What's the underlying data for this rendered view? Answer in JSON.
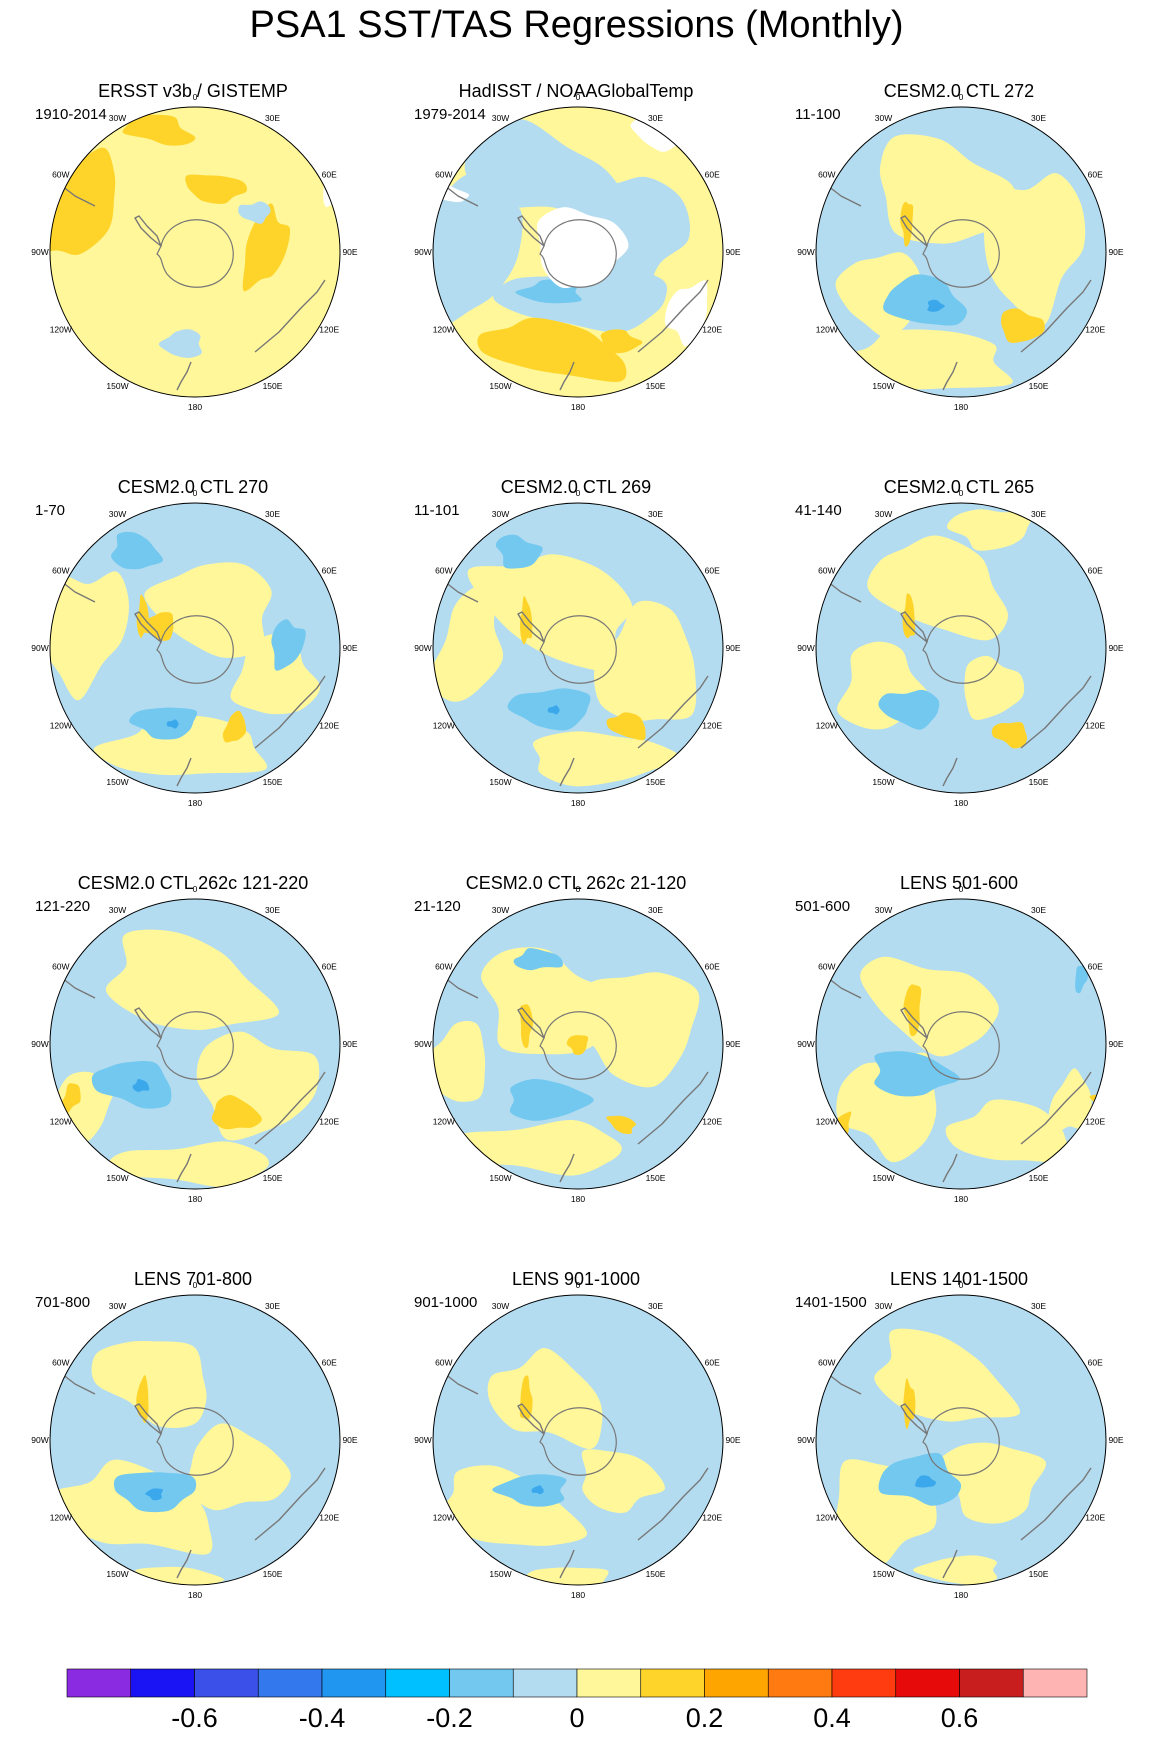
{
  "title": "PSA1 SST/TAS Regressions (Monthly)",
  "longitude_labels": [
    "0",
    "30E",
    "60E",
    "90E",
    "120E",
    "150E",
    "180",
    "150W",
    "120W",
    "90W",
    "60W",
    "30W"
  ],
  "panels": [
    {
      "title": "ERSST v3b / GISTEMP",
      "range": "1910-2014"
    },
    {
      "title": "HadISST / NOAAGlobalTemp",
      "range": "1979-2014"
    },
    {
      "title": "CESM2.0 CTL 272",
      "range": "11-100"
    },
    {
      "title": "CESM2.0 CTL 270",
      "range": "1-70"
    },
    {
      "title": "CESM2.0 CTL 269",
      "range": "11-101"
    },
    {
      "title": "CESM2.0 CTL 265",
      "range": "41-140"
    },
    {
      "title": "CESM2.0 CTL 262c 121-220",
      "range": "121-220"
    },
    {
      "title": "CESM2.0 CTL 262c 21-120",
      "range": "21-120"
    },
    {
      "title": "LENS 501-600",
      "range": "501-600"
    },
    {
      "title": "LENS 701-800",
      "range": "701-800"
    },
    {
      "title": "LENS 901-1000",
      "range": "901-1000"
    },
    {
      "title": "LENS 1401-1500",
      "range": "1401-1500"
    }
  ],
  "colorbar": {
    "colors": [
      "#8a2be2",
      "#1a14f5",
      "#3a50e8",
      "#3378ec",
      "#2196f0",
      "#00c0ff",
      "#73c8f0",
      "#b4dcf0",
      "#fff799",
      "#ffd42a",
      "#ffa500",
      "#ff7a10",
      "#ff3c10",
      "#e60a0a",
      "#c81e1e",
      "#ffb4b4"
    ],
    "labels": [
      "-0.6",
      "-0.4",
      "-0.2",
      "0",
      "0.2",
      "0.4",
      "0.6"
    ]
  }
}
